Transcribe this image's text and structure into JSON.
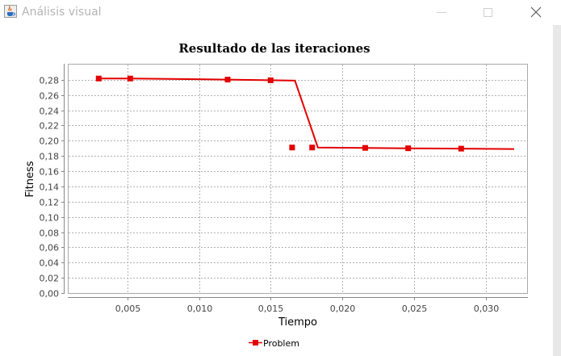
{
  "window": {
    "title": "Análisis visual",
    "icons": {
      "app": "java-cup-icon",
      "minimize": "minimize-icon",
      "maximize": "maximize-icon",
      "close": "close-icon"
    }
  },
  "colors": {
    "series": "#e30000",
    "grid": "#b0b0b0",
    "title_text": "#b5b5b5"
  },
  "chart_data": {
    "type": "line",
    "title": "Resultado de las iteraciones",
    "xlabel": "Tiempo",
    "ylabel": "Fitness",
    "xlim": [
      0.0009,
      0.0329
    ],
    "ylim": [
      0.0,
      0.3
    ],
    "x_ticks": [
      0.005,
      0.01,
      0.015,
      0.02,
      0.025,
      0.03
    ],
    "x_tick_labels": [
      "0,005",
      "0,010",
      "0,015",
      "0,020",
      "0,025",
      "0,030"
    ],
    "y_ticks": [
      0.0,
      0.02,
      0.04,
      0.06,
      0.08,
      0.1,
      0.12,
      0.14,
      0.16,
      0.18,
      0.2,
      0.22,
      0.24,
      0.26,
      0.28
    ],
    "y_tick_labels": [
      "0,00",
      "0,02",
      "0,04",
      "0,06",
      "0,08",
      "0,10",
      "0,12",
      "0,14",
      "0,16",
      "0,18",
      "0,20",
      "0,22",
      "0,24",
      "0,26",
      "0,28"
    ],
    "grid": true,
    "legend_position": "bottom",
    "series": [
      {
        "name": "Problem",
        "line": [
          [
            0.003,
            0.2817
          ],
          [
            0.0052,
            0.2817
          ],
          [
            0.012,
            0.2803
          ],
          [
            0.015,
            0.2794
          ],
          [
            0.0167,
            0.2789
          ],
          [
            0.0183,
            0.1911
          ],
          [
            0.0216,
            0.1906
          ],
          [
            0.0246,
            0.1901
          ],
          [
            0.0283,
            0.1896
          ],
          [
            0.032,
            0.1891
          ]
        ],
        "markers": [
          [
            0.003,
            0.2817
          ],
          [
            0.0052,
            0.2817
          ],
          [
            0.012,
            0.2803
          ],
          [
            0.015,
            0.2794
          ],
          [
            0.0165,
            0.1911
          ],
          [
            0.0179,
            0.1911
          ],
          [
            0.0216,
            0.1906
          ],
          [
            0.0246,
            0.1901
          ],
          [
            0.0283,
            0.1896
          ]
        ]
      }
    ]
  }
}
